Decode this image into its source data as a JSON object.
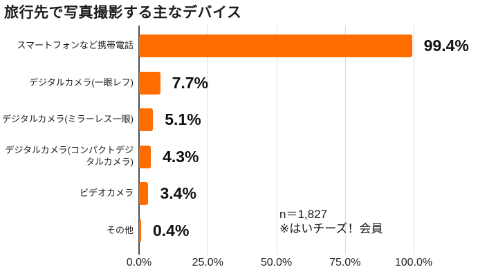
{
  "title": "旅行先で写真撮影する主なデバイス",
  "annotation": {
    "sample_size": "n＝1,827",
    "note": "※はいチーズ！会員"
  },
  "chart_data": {
    "type": "bar",
    "orientation": "horizontal",
    "title": "旅行先で写真撮影する主なデバイス",
    "categories": [
      "スマートフォンなど携帯電話",
      "デジタルカメラ(一眼レフ)",
      "デジタルカメラ(ミラーレス一眼)",
      "デジタルカメラ(コンパクトデジタルカメラ)",
      "ビデオカメラ",
      "その他"
    ],
    "values": [
      99.4,
      7.7,
      5.1,
      4.3,
      3.4,
      0.4
    ],
    "value_labels": [
      "99.4%",
      "7.7%",
      "5.1%",
      "4.3%",
      "3.4%",
      "0.4%"
    ],
    "x_tick_labels": [
      "0.0%",
      "25.0%",
      "50.0%",
      "75.0%",
      "100.0%"
    ],
    "x_tick_positions_pct": [
      0,
      25,
      50,
      75,
      100
    ],
    "xlim": [
      0,
      100
    ],
    "grid": true,
    "legend": false,
    "bar_color": "#FF6C00",
    "gridline_color": "#D9D9D9",
    "axis_color": "#4D4D4D",
    "annotations": [
      "n＝1,827",
      "※はいチーズ！会員"
    ]
  }
}
